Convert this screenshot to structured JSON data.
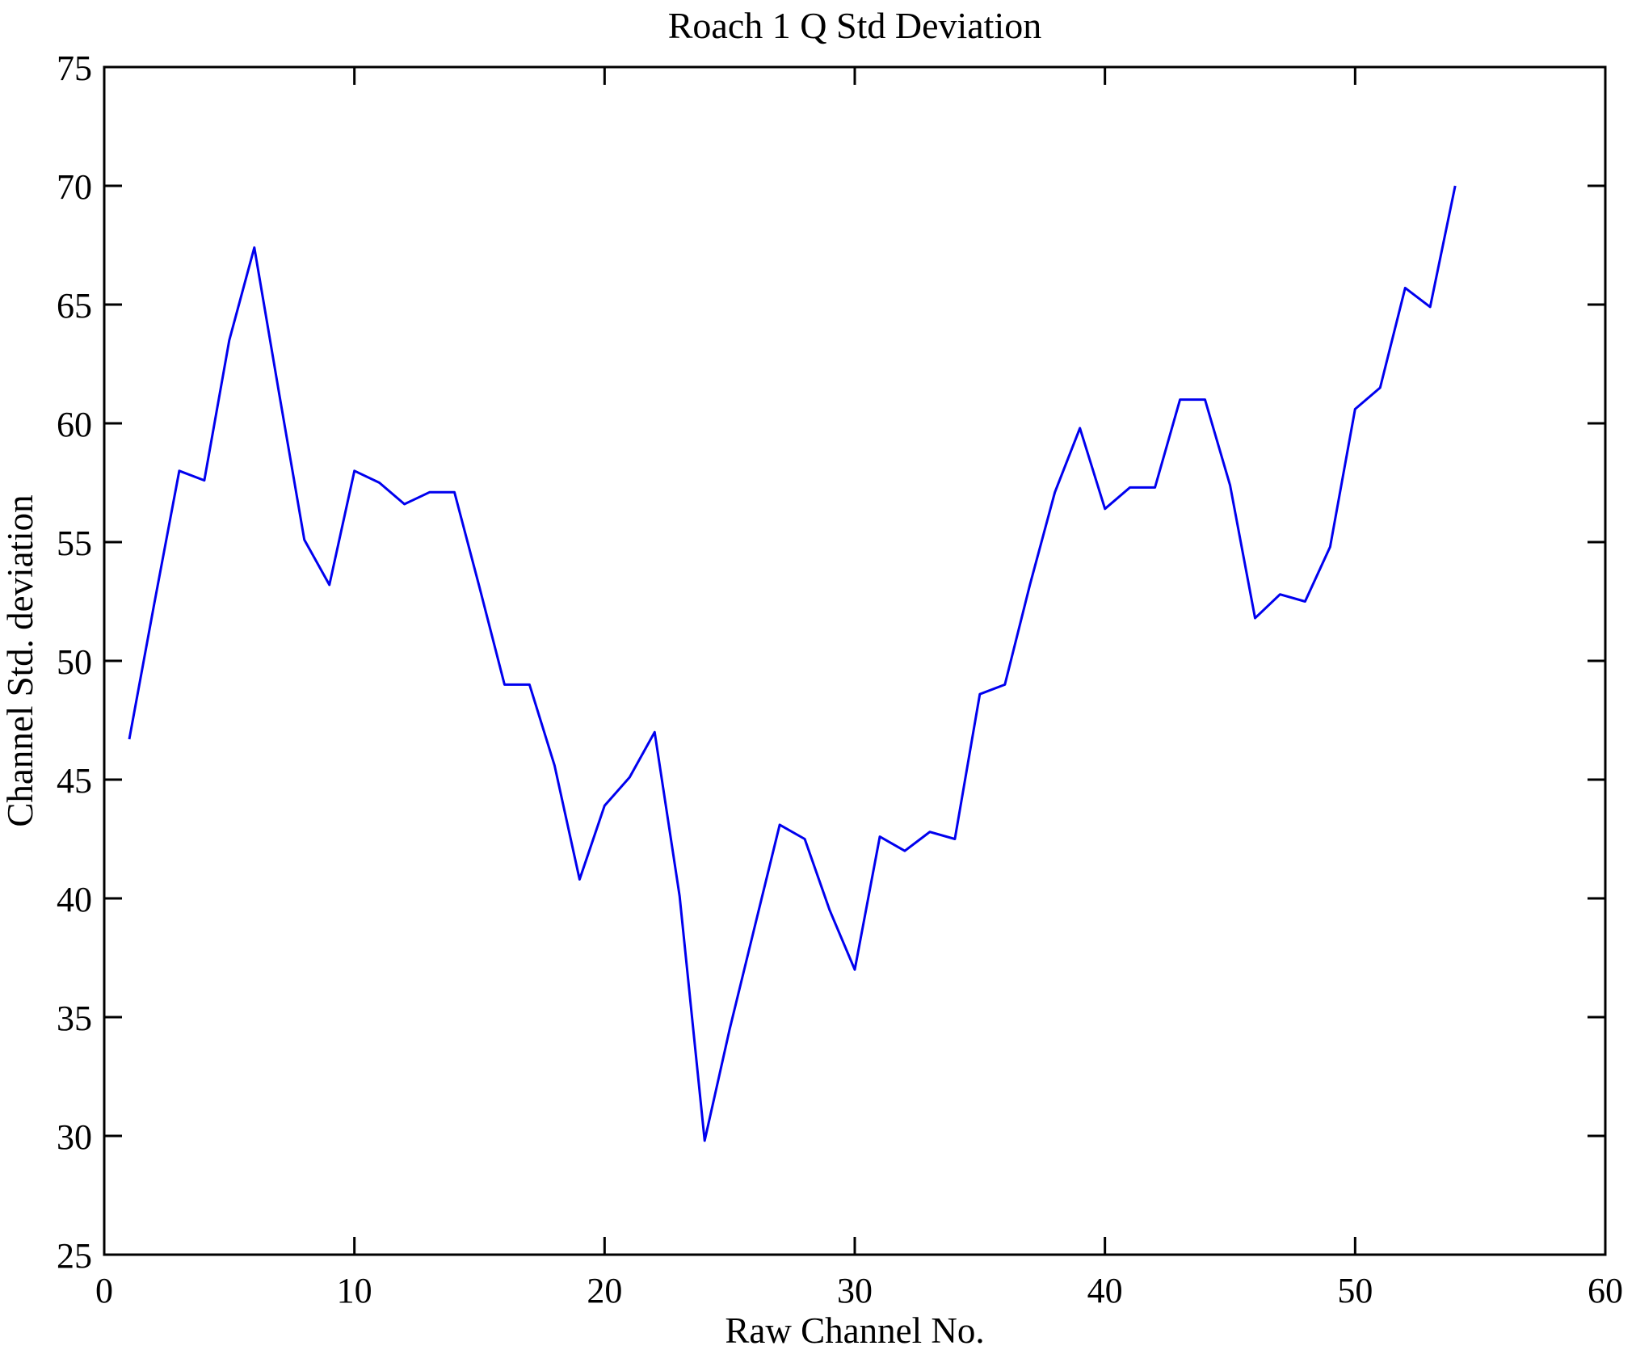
{
  "page": {
    "background": "#ffffff"
  },
  "chart_data": {
    "type": "line",
    "title": "Roach 1 Q Std Deviation",
    "xlabel": "Raw Channel No.",
    "ylabel": "Channel Std. deviation",
    "xlim": [
      0,
      60
    ],
    "ylim": [
      25,
      75
    ],
    "xticks": [
      0,
      10,
      20,
      30,
      40,
      50,
      60
    ],
    "yticks": [
      25,
      30,
      35,
      40,
      45,
      50,
      55,
      60,
      65,
      70,
      75
    ],
    "grid": false,
    "legend_position": "none",
    "box": true,
    "line_color": "#0000EE",
    "axis_color": "#000000",
    "x": [
      1,
      2,
      3,
      4,
      5,
      6,
      7,
      8,
      9,
      10,
      11,
      12,
      13,
      14,
      15,
      16,
      17,
      18,
      19,
      20,
      21,
      22,
      23,
      24,
      25,
      26,
      27,
      28,
      29,
      30,
      31,
      32,
      33,
      34,
      35,
      36,
      37,
      38,
      39,
      40,
      41,
      42,
      43,
      44,
      45,
      46,
      47,
      48,
      49,
      50,
      51,
      52,
      53,
      54
    ],
    "values": [
      46.7,
      52.4,
      58.0,
      57.6,
      63.5,
      67.4,
      61.2,
      55.1,
      53.2,
      58.0,
      57.5,
      56.6,
      57.1,
      57.1,
      53.1,
      49.0,
      49.0,
      45.6,
      40.8,
      43.9,
      45.1,
      47.0,
      40.1,
      29.8,
      34.5,
      38.8,
      43.1,
      42.5,
      39.5,
      37.0,
      42.6,
      42.0,
      42.8,
      42.5,
      48.6,
      49.0,
      53.2,
      57.1,
      59.8,
      56.4,
      57.3,
      57.3,
      61.0,
      61.0,
      57.4,
      51.8,
      52.8,
      52.5,
      54.8,
      60.6,
      61.5,
      65.7,
      64.9,
      70.0
    ]
  }
}
